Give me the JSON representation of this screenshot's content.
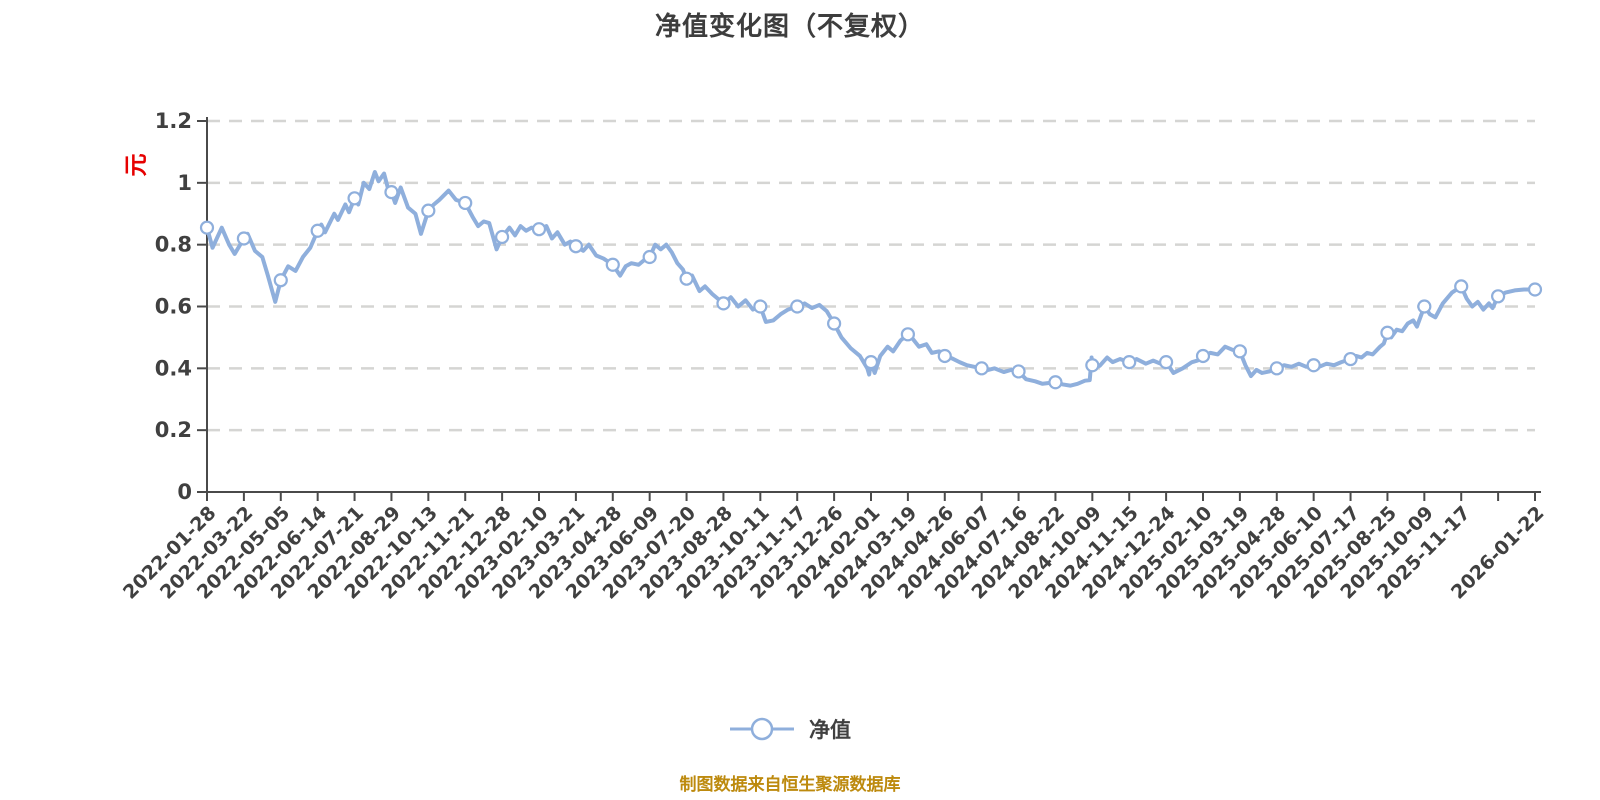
{
  "title": "净值变化图（不复权）",
  "y_axis_unit": "元",
  "legend_label": "净值",
  "footer_note": "制图数据来自恒生聚源数据库",
  "colors": {
    "line": "#8fafdc",
    "marker_fill": "#ffffff",
    "grid": "#d5d5d3",
    "axis": "#4a4a4a",
    "tick_text": "#404040",
    "unit_label": "#e60000",
    "footer": "#bd8a0e"
  },
  "chart_data": {
    "type": "line",
    "title": "净值变化图（不复权）",
    "ylabel": "元",
    "ylim": [
      0,
      1.2
    ],
    "y_ticks": [
      0,
      0.2,
      0.4,
      0.6,
      0.8,
      1,
      1.2
    ],
    "grid": "dashed-horizontal",
    "legend": [
      "净值"
    ],
    "legend_position": "bottom",
    "x_ticks": [
      {
        "t": 0,
        "label": "2022-01-28"
      },
      {
        "t": 1,
        "label": "2022-03-22"
      },
      {
        "t": 2,
        "label": "2022-05-05"
      },
      {
        "t": 3,
        "label": "2022-06-14"
      },
      {
        "t": 4,
        "label": "2022-07-21"
      },
      {
        "t": 5,
        "label": "2022-08-29"
      },
      {
        "t": 6,
        "label": "2022-10-13"
      },
      {
        "t": 7,
        "label": "2022-11-21"
      },
      {
        "t": 8,
        "label": "2022-12-28"
      },
      {
        "t": 9,
        "label": "2023-02-10"
      },
      {
        "t": 10,
        "label": "2023-03-21"
      },
      {
        "t": 11,
        "label": "2023-04-28"
      },
      {
        "t": 12,
        "label": "2023-06-09"
      },
      {
        "t": 13,
        "label": "2023-07-20"
      },
      {
        "t": 14,
        "label": "2023-08-28"
      },
      {
        "t": 15,
        "label": "2023-10-11"
      },
      {
        "t": 16,
        "label": "2023-11-17"
      },
      {
        "t": 17,
        "label": "2023-12-26"
      },
      {
        "t": 18,
        "label": "2024-02-01"
      },
      {
        "t": 19,
        "label": "2024-03-19"
      },
      {
        "t": 20,
        "label": "2024-04-26"
      },
      {
        "t": 21,
        "label": "2024-06-07"
      },
      {
        "t": 22,
        "label": "2024-07-16"
      },
      {
        "t": 23,
        "label": "2024-08-22"
      },
      {
        "t": 24,
        "label": "2024-10-09"
      },
      {
        "t": 25,
        "label": "2024-11-15"
      },
      {
        "t": 26,
        "label": "2024-12-24"
      },
      {
        "t": 27,
        "label": "2025-02-10"
      },
      {
        "t": 28,
        "label": "2025-03-19"
      },
      {
        "t": 29,
        "label": "2025-04-28"
      },
      {
        "t": 30,
        "label": "2025-06-10"
      },
      {
        "t": 31,
        "label": "2025-07-17"
      },
      {
        "t": 32,
        "label": "2025-08-25"
      },
      {
        "t": 33,
        "label": "2025-10-09"
      },
      {
        "t": 34,
        "label": "2025-11-17"
      },
      {
        "t": 35,
        "label": ""
      },
      {
        "t": 36,
        "label": "2026-01-22"
      }
    ],
    "series": [
      {
        "name": "净值",
        "markers": [
          0.855,
          0.82,
          0.685,
          0.845,
          0.95,
          0.97,
          0.91,
          0.935,
          0.825,
          0.85,
          0.795,
          0.735,
          0.76,
          0.69,
          0.61,
          0.6,
          0.6,
          0.545,
          0.42,
          0.51,
          0.44,
          0.4,
          0.39,
          0.355,
          0.41,
          0.42,
          0.42,
          0.44,
          0.455,
          0.4,
          0.41,
          0.43,
          0.515,
          0.6,
          0.665,
          0.633,
          0.655
        ],
        "path": [
          [
            0,
            0.855
          ],
          [
            0.15,
            0.79
          ],
          [
            0.4,
            0.855
          ],
          [
            0.6,
            0.8
          ],
          [
            0.75,
            0.77
          ],
          [
            1,
            0.82
          ],
          [
            1.1,
            0.835
          ],
          [
            1.3,
            0.78
          ],
          [
            1.5,
            0.76
          ],
          [
            1.65,
            0.7
          ],
          [
            1.85,
            0.615
          ],
          [
            2,
            0.685
          ],
          [
            2.2,
            0.73
          ],
          [
            2.4,
            0.715
          ],
          [
            2.6,
            0.76
          ],
          [
            2.8,
            0.79
          ],
          [
            3,
            0.845
          ],
          [
            3.1,
            0.865
          ],
          [
            3.2,
            0.84
          ],
          [
            3.45,
            0.9
          ],
          [
            3.55,
            0.88
          ],
          [
            3.75,
            0.93
          ],
          [
            3.85,
            0.905
          ],
          [
            4,
            0.95
          ],
          [
            4.1,
            0.93
          ],
          [
            4.25,
            1
          ],
          [
            4.4,
            0.98
          ],
          [
            4.55,
            1.035
          ],
          [
            4.65,
            1.005
          ],
          [
            4.8,
            1.03
          ],
          [
            4.9,
            0.985
          ],
          [
            5,
            0.97
          ],
          [
            5.1,
            0.935
          ],
          [
            5.25,
            0.985
          ],
          [
            5.45,
            0.92
          ],
          [
            5.65,
            0.9
          ],
          [
            5.8,
            0.835
          ],
          [
            6,
            0.91
          ],
          [
            6.15,
            0.93
          ],
          [
            6.3,
            0.945
          ],
          [
            6.55,
            0.975
          ],
          [
            6.75,
            0.945
          ],
          [
            7,
            0.935
          ],
          [
            7.2,
            0.89
          ],
          [
            7.35,
            0.86
          ],
          [
            7.5,
            0.875
          ],
          [
            7.65,
            0.87
          ],
          [
            7.85,
            0.785
          ],
          [
            8,
            0.825
          ],
          [
            8.2,
            0.855
          ],
          [
            8.35,
            0.83
          ],
          [
            8.5,
            0.86
          ],
          [
            8.65,
            0.845
          ],
          [
            8.8,
            0.855
          ],
          [
            9,
            0.85
          ],
          [
            9.2,
            0.86
          ],
          [
            9.35,
            0.82
          ],
          [
            9.5,
            0.84
          ],
          [
            9.7,
            0.8
          ],
          [
            9.85,
            0.81
          ],
          [
            10,
            0.795
          ],
          [
            10.2,
            0.78
          ],
          [
            10.35,
            0.8
          ],
          [
            10.55,
            0.765
          ],
          [
            10.75,
            0.755
          ],
          [
            11,
            0.735
          ],
          [
            11.2,
            0.7
          ],
          [
            11.35,
            0.73
          ],
          [
            11.5,
            0.74
          ],
          [
            11.7,
            0.735
          ],
          [
            11.85,
            0.75
          ],
          [
            12,
            0.76
          ],
          [
            12.15,
            0.8
          ],
          [
            12.3,
            0.785
          ],
          [
            12.45,
            0.8
          ],
          [
            12.6,
            0.775
          ],
          [
            12.75,
            0.74
          ],
          [
            12.9,
            0.72
          ],
          [
            13,
            0.69
          ],
          [
            13.15,
            0.7
          ],
          [
            13.35,
            0.65
          ],
          [
            13.5,
            0.665
          ],
          [
            13.7,
            0.64
          ],
          [
            13.85,
            0.625
          ],
          [
            14,
            0.61
          ],
          [
            14.2,
            0.63
          ],
          [
            14.4,
            0.6
          ],
          [
            14.6,
            0.62
          ],
          [
            14.8,
            0.59
          ],
          [
            15,
            0.6
          ],
          [
            15.15,
            0.55
          ],
          [
            15.35,
            0.555
          ],
          [
            15.55,
            0.575
          ],
          [
            15.75,
            0.59
          ],
          [
            16,
            0.6
          ],
          [
            16.2,
            0.61
          ],
          [
            16.4,
            0.595
          ],
          [
            16.6,
            0.605
          ],
          [
            16.8,
            0.585
          ],
          [
            17,
            0.545
          ],
          [
            17.2,
            0.5
          ],
          [
            17.45,
            0.465
          ],
          [
            17.7,
            0.44
          ],
          [
            17.9,
            0.4
          ],
          [
            17.95,
            0.38
          ],
          [
            18,
            0.42
          ],
          [
            18.1,
            0.385
          ],
          [
            18.25,
            0.44
          ],
          [
            18.45,
            0.47
          ],
          [
            18.6,
            0.455
          ],
          [
            18.8,
            0.49
          ],
          [
            19,
            0.51
          ],
          [
            19.1,
            0.5
          ],
          [
            19.3,
            0.47
          ],
          [
            19.5,
            0.478
          ],
          [
            19.65,
            0.45
          ],
          [
            19.85,
            0.455
          ],
          [
            20,
            0.44
          ],
          [
            20.2,
            0.432
          ],
          [
            20.4,
            0.42
          ],
          [
            20.6,
            0.41
          ],
          [
            20.8,
            0.405
          ],
          [
            21,
            0.4
          ],
          [
            21.15,
            0.394
          ],
          [
            21.35,
            0.4
          ],
          [
            21.6,
            0.388
          ],
          [
            21.8,
            0.395
          ],
          [
            22,
            0.39
          ],
          [
            22.2,
            0.365
          ],
          [
            22.45,
            0.358
          ],
          [
            22.65,
            0.35
          ],
          [
            22.85,
            0.353
          ],
          [
            23,
            0.355
          ],
          [
            23.2,
            0.348
          ],
          [
            23.4,
            0.344
          ],
          [
            23.6,
            0.35
          ],
          [
            23.8,
            0.36
          ],
          [
            23.93,
            0.362
          ],
          [
            23.98,
            0.435
          ],
          [
            24,
            0.41
          ],
          [
            24.2,
            0.408
          ],
          [
            24.4,
            0.435
          ],
          [
            24.55,
            0.42
          ],
          [
            24.75,
            0.43
          ],
          [
            25,
            0.42
          ],
          [
            25.2,
            0.43
          ],
          [
            25.45,
            0.415
          ],
          [
            25.65,
            0.425
          ],
          [
            25.85,
            0.415
          ],
          [
            26,
            0.42
          ],
          [
            26.2,
            0.385
          ],
          [
            26.45,
            0.4
          ],
          [
            26.7,
            0.42
          ],
          [
            26.85,
            0.425
          ],
          [
            27,
            0.44
          ],
          [
            27.2,
            0.45
          ],
          [
            27.4,
            0.445
          ],
          [
            27.6,
            0.47
          ],
          [
            27.8,
            0.46
          ],
          [
            28,
            0.455
          ],
          [
            28.15,
            0.41
          ],
          [
            28.3,
            0.375
          ],
          [
            28.45,
            0.395
          ],
          [
            28.6,
            0.385
          ],
          [
            28.8,
            0.39
          ],
          [
            29,
            0.4
          ],
          [
            29.2,
            0.41
          ],
          [
            29.4,
            0.405
          ],
          [
            29.6,
            0.415
          ],
          [
            29.8,
            0.405
          ],
          [
            30,
            0.41
          ],
          [
            30.15,
            0.405
          ],
          [
            30.35,
            0.415
          ],
          [
            30.55,
            0.41
          ],
          [
            30.75,
            0.42
          ],
          [
            31,
            0.43
          ],
          [
            31.15,
            0.44
          ],
          [
            31.3,
            0.435
          ],
          [
            31.45,
            0.45
          ],
          [
            31.6,
            0.445
          ],
          [
            31.8,
            0.47
          ],
          [
            31.9,
            0.48
          ],
          [
            32,
            0.515
          ],
          [
            32.1,
            0.5
          ],
          [
            32.25,
            0.525
          ],
          [
            32.4,
            0.52
          ],
          [
            32.55,
            0.545
          ],
          [
            32.7,
            0.555
          ],
          [
            32.8,
            0.535
          ],
          [
            33,
            0.6
          ],
          [
            33.15,
            0.575
          ],
          [
            33.3,
            0.565
          ],
          [
            33.5,
            0.61
          ],
          [
            33.75,
            0.645
          ],
          [
            34,
            0.665
          ],
          [
            34.15,
            0.625
          ],
          [
            34.3,
            0.6
          ],
          [
            34.45,
            0.615
          ],
          [
            34.6,
            0.59
          ],
          [
            34.75,
            0.61
          ],
          [
            34.85,
            0.595
          ],
          [
            35,
            0.633
          ],
          [
            35.2,
            0.645
          ],
          [
            35.45,
            0.652
          ],
          [
            35.7,
            0.655
          ],
          [
            36,
            0.655
          ]
        ]
      }
    ]
  }
}
